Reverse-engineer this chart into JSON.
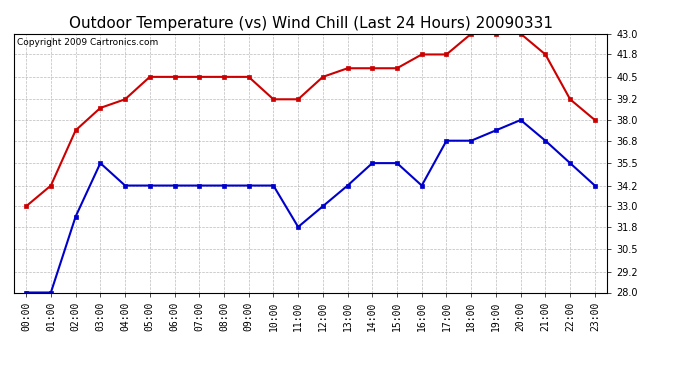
{
  "title": "Outdoor Temperature (vs) Wind Chill (Last 24 Hours) 20090331",
  "copyright": "Copyright 2009 Cartronics.com",
  "hours": [
    "00:00",
    "01:00",
    "02:00",
    "03:00",
    "04:00",
    "05:00",
    "06:00",
    "07:00",
    "08:00",
    "09:00",
    "10:00",
    "11:00",
    "12:00",
    "13:00",
    "14:00",
    "15:00",
    "16:00",
    "17:00",
    "18:00",
    "19:00",
    "20:00",
    "21:00",
    "22:00",
    "23:00"
  ],
  "temp": [
    33.0,
    34.2,
    37.4,
    38.7,
    39.2,
    40.5,
    40.5,
    40.5,
    40.5,
    40.5,
    39.2,
    39.2,
    40.5,
    41.0,
    41.0,
    41.0,
    41.8,
    41.8,
    43.0,
    43.0,
    43.0,
    41.8,
    39.2,
    38.0
  ],
  "windchill": [
    28.0,
    28.0,
    32.4,
    35.5,
    34.2,
    34.2,
    34.2,
    34.2,
    34.2,
    34.2,
    34.2,
    31.8,
    33.0,
    34.2,
    35.5,
    35.5,
    34.2,
    36.8,
    36.8,
    37.4,
    38.0,
    36.8,
    35.5,
    34.2
  ],
  "temp_color": "#cc0000",
  "windchill_color": "#0000cc",
  "bg_color": "#ffffff",
  "grid_color": "#aaaaaa",
  "ylim": [
    28.0,
    43.0
  ],
  "yticks": [
    28.0,
    29.2,
    30.5,
    31.8,
    33.0,
    34.2,
    35.5,
    36.8,
    38.0,
    39.2,
    40.5,
    41.8,
    43.0
  ],
  "marker": "s",
  "markersize": 3,
  "linewidth": 1.5,
  "title_fontsize": 11,
  "tick_fontsize": 7,
  "copyright_fontsize": 6.5
}
